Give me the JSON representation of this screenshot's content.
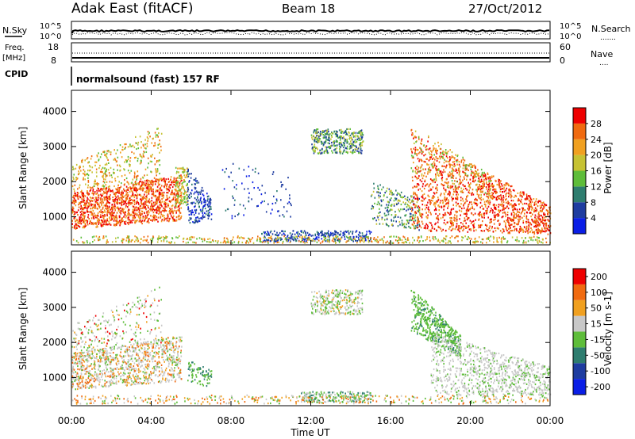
{
  "header": {
    "station": "Adak East (fitACF)",
    "beam": "Beam 18",
    "date": "27/Oct/2012"
  },
  "nsky_panel": {
    "left_label": "N.Sky",
    "left_ticks": [
      "10^5",
      "10^0"
    ],
    "right_ticks": [
      "10^5",
      "10^0"
    ],
    "right_label": "N.Search",
    "right_legend": "......."
  },
  "freq_panel": {
    "left_label_1": "Freq.",
    "left_label_2": "[MHz]",
    "left_ticks": [
      "18",
      "8"
    ],
    "right_ticks": [
      "60",
      "0"
    ],
    "right_label": "Nave",
    "right_legend": "...."
  },
  "cpid": {
    "label": "CPID",
    "text": "normalsound (fast) 157 RF"
  },
  "chart_data": [
    {
      "type": "heatmap",
      "name": "power",
      "ylabel": "Slant Range [km]",
      "ylim": [
        200,
        4600
      ],
      "yticks": [
        "1000",
        "2000",
        "3000",
        "4000"
      ],
      "ytick_values": [
        1000,
        2000,
        3000,
        4000
      ],
      "xlim": [
        0,
        24
      ],
      "colorbar": {
        "label": "Power [dB]",
        "ticks": [
          "4",
          "8",
          "12",
          "16",
          "20",
          "24",
          "28"
        ],
        "colors": [
          "#0a1ee6",
          "#1e3ca0",
          "#2e7d6f",
          "#5ebd3a",
          "#c6c233",
          "#f0a020",
          "#f06a10",
          "#ee0000"
        ]
      }
    },
    {
      "type": "heatmap",
      "name": "velocity",
      "ylabel": "Slant Range [km]",
      "ylim": [
        200,
        4600
      ],
      "yticks": [
        "1000",
        "2000",
        "3000",
        "4000"
      ],
      "ytick_values": [
        1000,
        2000,
        3000,
        4000
      ],
      "xlim": [
        0,
        24
      ],
      "colorbar": {
        "label": "Velocity [m s-1]",
        "ticks": [
          "200",
          "100",
          "50",
          "15",
          "-15",
          "-50",
          "-100",
          "-200"
        ],
        "colors": [
          "#0a1ee6",
          "#1e3ca0",
          "#2e7d6f",
          "#5ebd3a",
          "#c8c8c8",
          "#f0a020",
          "#f06a10",
          "#ee0000"
        ]
      }
    }
  ],
  "xaxis": {
    "label": "Time UT",
    "ticks": [
      "00:00",
      "04:00",
      "08:00",
      "12:00",
      "16:00",
      "20:00",
      "00:00"
    ],
    "tick_hours": [
      0,
      4,
      8,
      12,
      16,
      20,
      24
    ]
  }
}
